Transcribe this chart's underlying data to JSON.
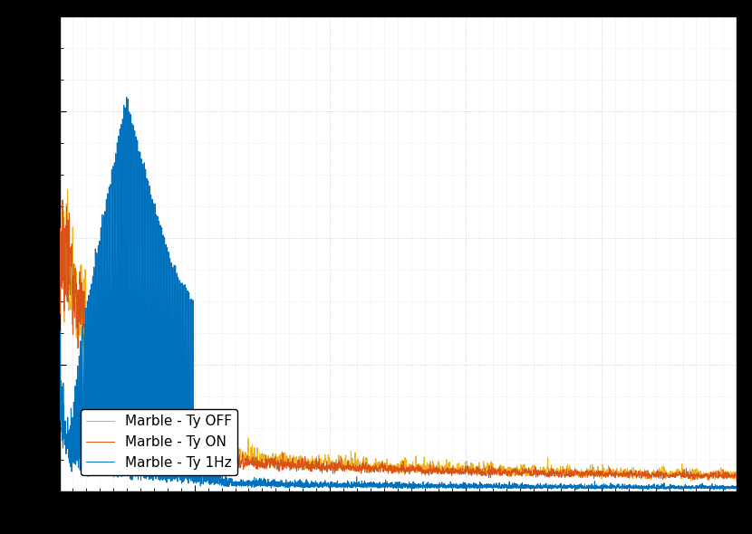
{
  "title": "",
  "xlabel": "",
  "ylabel": "",
  "line1_label": "Marble - Ty 1Hz",
  "line2_label": "Marble - Ty ON",
  "line3_label": "Marble - Ty OFF",
  "line1_color": "#0072BD",
  "line2_color": "#D95319",
  "line3_color": "#EDB120",
  "background_color": "#ffffff",
  "grid_color": "#d0d0d0",
  "xmin": 1,
  "xmax": 500,
  "ymin": 0.0,
  "ymax": 1.0,
  "legend_loc": "lower left",
  "legend_fontsize": 11
}
